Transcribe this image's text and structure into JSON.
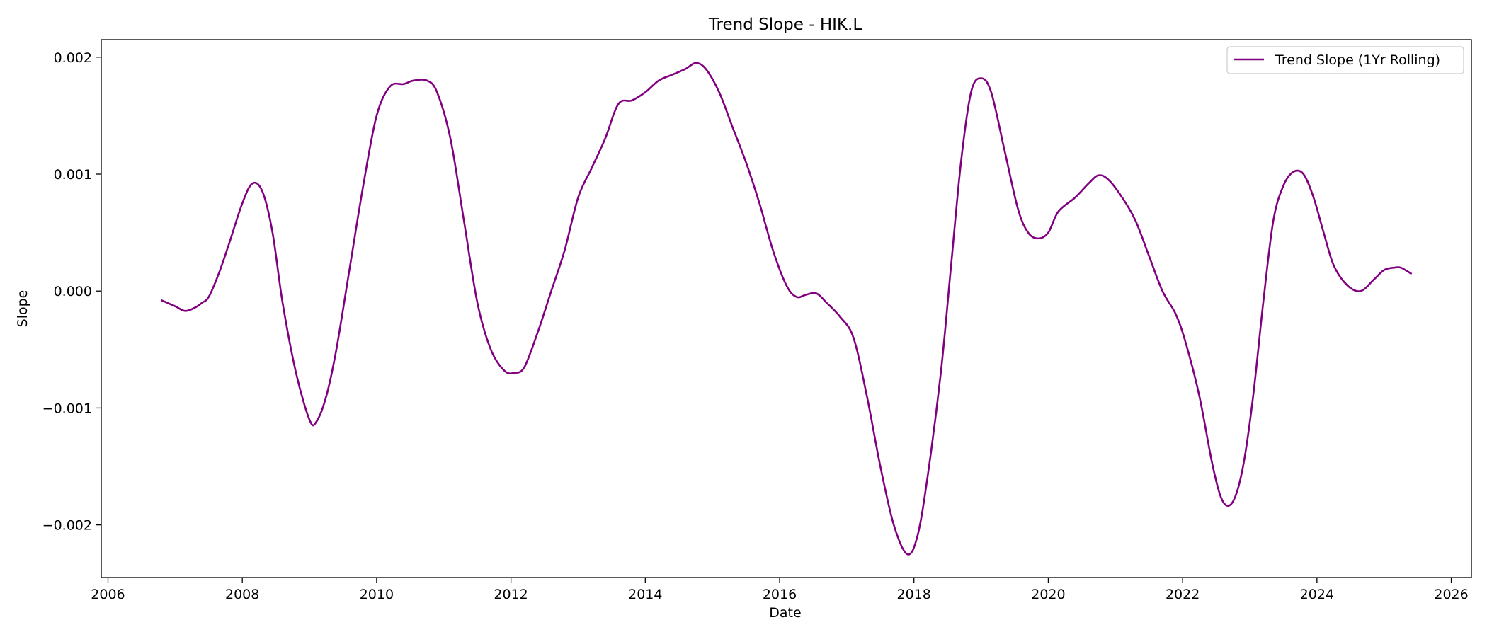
{
  "chart_data": {
    "type": "line",
    "title": "Trend Slope - HIK.L",
    "xlabel": "Date",
    "ylabel": "Slope",
    "xlim": [
      2005.9,
      2026.3
    ],
    "ylim": [
      -0.00245,
      0.00215
    ],
    "x_ticks": [
      2006,
      2008,
      2010,
      2012,
      2014,
      2016,
      2018,
      2020,
      2022,
      2024,
      2026
    ],
    "x_tick_labels": [
      "2006",
      "2008",
      "2010",
      "2012",
      "2014",
      "2016",
      "2018",
      "2020",
      "2022",
      "2024",
      "2026"
    ],
    "y_ticks": [
      -0.002,
      -0.001,
      0.0,
      0.001,
      0.002
    ],
    "y_tick_labels": [
      "−0.002",
      "−0.001",
      "0.000",
      "0.001",
      "0.002"
    ],
    "grid": false,
    "legend_position": "top-right",
    "series": [
      {
        "name": "Trend Slope (1Yr Rolling)",
        "color": "#800080",
        "points": [
          [
            2006.8,
            -8e-05
          ],
          [
            2007.0,
            -0.00013
          ],
          [
            2007.15,
            -0.00017
          ],
          [
            2007.3,
            -0.00014
          ],
          [
            2007.4,
            -0.0001
          ],
          [
            2007.5,
            -5e-05
          ],
          [
            2007.65,
            0.00015
          ],
          [
            2007.8,
            0.0004
          ],
          [
            2008.0,
            0.00075
          ],
          [
            2008.15,
            0.00092
          ],
          [
            2008.3,
            0.00085
          ],
          [
            2008.45,
            0.0005
          ],
          [
            2008.6,
            -0.0001
          ],
          [
            2008.8,
            -0.0007
          ],
          [
            2009.0,
            -0.0011
          ],
          [
            2009.1,
            -0.00112
          ],
          [
            2009.25,
            -0.0009
          ],
          [
            2009.4,
            -0.0005
          ],
          [
            2009.6,
            0.0002
          ],
          [
            2009.8,
            0.0009
          ],
          [
            2010.0,
            0.0015
          ],
          [
            2010.2,
            0.00175
          ],
          [
            2010.4,
            0.00177
          ],
          [
            2010.55,
            0.0018
          ],
          [
            2010.75,
            0.0018
          ],
          [
            2010.9,
            0.0017
          ],
          [
            2011.1,
            0.0013
          ],
          [
            2011.3,
            0.0006
          ],
          [
            2011.5,
            -0.0001
          ],
          [
            2011.7,
            -0.0005
          ],
          [
            2011.9,
            -0.00068
          ],
          [
            2012.05,
            -0.0007
          ],
          [
            2012.2,
            -0.00065
          ],
          [
            2012.4,
            -0.00035
          ],
          [
            2012.6,
            0.0
          ],
          [
            2012.8,
            0.00035
          ],
          [
            2013.0,
            0.0008
          ],
          [
            2013.2,
            0.00105
          ],
          [
            2013.4,
            0.0013
          ],
          [
            2013.6,
            0.0016
          ],
          [
            2013.8,
            0.00163
          ],
          [
            2014.0,
            0.0017
          ],
          [
            2014.2,
            0.0018
          ],
          [
            2014.4,
            0.00185
          ],
          [
            2014.6,
            0.0019
          ],
          [
            2014.75,
            0.00195
          ],
          [
            2014.9,
            0.0019
          ],
          [
            2015.1,
            0.0017
          ],
          [
            2015.3,
            0.0014
          ],
          [
            2015.5,
            0.0011
          ],
          [
            2015.7,
            0.00075
          ],
          [
            2015.9,
            0.00035
          ],
          [
            2016.1,
            5e-05
          ],
          [
            2016.25,
            -5e-05
          ],
          [
            2016.4,
            -3e-05
          ],
          [
            2016.55,
            -2e-05
          ],
          [
            2016.7,
            -0.0001
          ],
          [
            2016.9,
            -0.00022
          ],
          [
            2017.1,
            -0.0004
          ],
          [
            2017.3,
            -0.0009
          ],
          [
            2017.5,
            -0.0015
          ],
          [
            2017.7,
            -0.002
          ],
          [
            2017.9,
            -0.00225
          ],
          [
            2018.05,
            -0.0021
          ],
          [
            2018.2,
            -0.0016
          ],
          [
            2018.4,
            -0.0007
          ],
          [
            2018.55,
            0.0002
          ],
          [
            2018.7,
            0.0011
          ],
          [
            2018.85,
            0.0017
          ],
          [
            2019.0,
            0.00182
          ],
          [
            2019.15,
            0.0017
          ],
          [
            2019.35,
            0.0012
          ],
          [
            2019.55,
            0.0007
          ],
          [
            2019.7,
            0.0005
          ],
          [
            2019.85,
            0.00045
          ],
          [
            2020.0,
            0.0005
          ],
          [
            2020.15,
            0.00068
          ],
          [
            2020.4,
            0.0008
          ],
          [
            2020.6,
            0.00092
          ],
          [
            2020.75,
            0.00099
          ],
          [
            2020.9,
            0.00095
          ],
          [
            2021.1,
            0.0008
          ],
          [
            2021.3,
            0.0006
          ],
          [
            2021.5,
            0.0003
          ],
          [
            2021.7,
            0.0
          ],
          [
            2021.9,
            -0.0002
          ],
          [
            2022.05,
            -0.00045
          ],
          [
            2022.25,
            -0.0009
          ],
          [
            2022.45,
            -0.0015
          ],
          [
            2022.6,
            -0.0018
          ],
          [
            2022.75,
            -0.0018
          ],
          [
            2022.9,
            -0.0015
          ],
          [
            2023.05,
            -0.0009
          ],
          [
            2023.2,
            -0.0001
          ],
          [
            2023.35,
            0.0006
          ],
          [
            2023.5,
            0.0009
          ],
          [
            2023.65,
            0.00102
          ],
          [
            2023.8,
            0.001
          ],
          [
            2023.95,
            0.0008
          ],
          [
            2024.1,
            0.0005
          ],
          [
            2024.25,
            0.00022
          ],
          [
            2024.45,
            5e-05
          ],
          [
            2024.65,
            0.0
          ],
          [
            2024.85,
            0.0001
          ],
          [
            2025.0,
            0.00018
          ],
          [
            2025.15,
            0.0002
          ],
          [
            2025.25,
            0.0002
          ],
          [
            2025.4,
            0.00015
          ]
        ]
      }
    ]
  }
}
